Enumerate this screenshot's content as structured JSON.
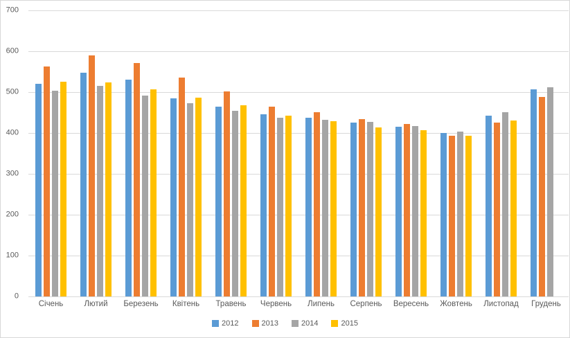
{
  "chart_data": {
    "type": "bar",
    "title": "",
    "xlabel": "",
    "ylabel": "",
    "categories": [
      "Січень",
      "Лютий",
      "Березень",
      "Квітень",
      "Травень",
      "Червень",
      "Липень",
      "Серпень",
      "Вересень",
      "Жовтень",
      "Листопад",
      "Грудень"
    ],
    "series": [
      {
        "name": "2012",
        "color": "#5B9BD5",
        "values": [
          521,
          547,
          531,
          485,
          465,
          446,
          437,
          426,
          416,
          400,
          442,
          506
        ]
      },
      {
        "name": "2013",
        "color": "#ED7D31",
        "values": [
          563,
          590,
          571,
          535,
          501,
          465,
          451,
          434,
          422,
          393,
          425,
          488
        ]
      },
      {
        "name": "2014",
        "color": "#A5A5A5",
        "values": [
          504,
          516,
          492,
          473,
          454,
          437,
          432,
          427,
          417,
          403,
          450,
          512
        ]
      },
      {
        "name": "2015",
        "color": "#FFC000",
        "values": [
          525,
          523,
          507,
          486,
          468,
          443,
          428,
          414,
          407,
          394,
          430,
          null
        ]
      }
    ],
    "ylim": [
      0,
      700
    ],
    "yticks": [
      700,
      600,
      500,
      400,
      300,
      200,
      100,
      0
    ],
    "grid": true,
    "legend_position": "bottom",
    "legend_labels": [
      "2012",
      "2013",
      "2014",
      "2015"
    ]
  },
  "colors": {
    "gridline": "#d9d9d9",
    "axis_text": "#595959",
    "chart_border": "#d7d7d7",
    "background": "#ffffff"
  }
}
